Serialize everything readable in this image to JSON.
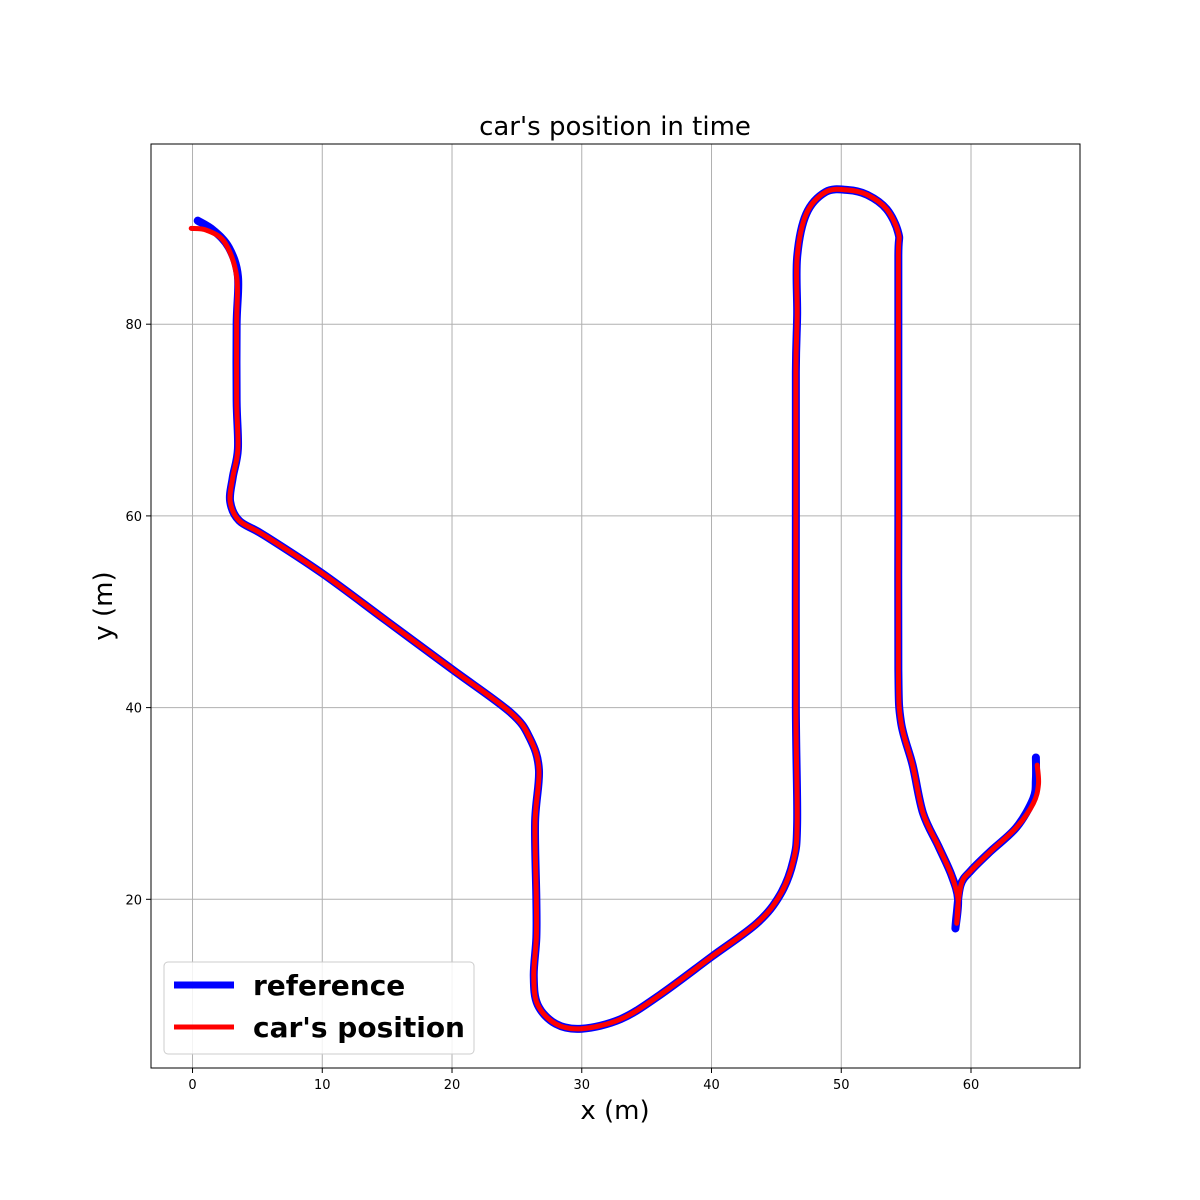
{
  "chart_data": {
    "type": "line",
    "title": "car's position in time",
    "xlabel": "x (m)",
    "ylabel": "y (m)",
    "xlim": [
      -3.2,
      68.4
    ],
    "ylim": [
      2.4,
      98.8
    ],
    "xticks": [
      0,
      10,
      20,
      30,
      40,
      50,
      60
    ],
    "yticks": [
      20,
      40,
      60,
      80
    ],
    "grid": true,
    "legend_position": "lower-left",
    "series": [
      {
        "name": "reference",
        "color": "#0000ff",
        "x": [
          0.4,
          1.6,
          2.8,
          3.5,
          3.4,
          3.4,
          3.5,
          3.1,
          2.9,
          3.6,
          5.5,
          10.0,
          15.0,
          20.0,
          24.5,
          26.0,
          26.7,
          26.4,
          26.5,
          26.5,
          26.3,
          26.6,
          28.0,
          30.0,
          33.0,
          36.0,
          40.0,
          43.5,
          45.3,
          46.3,
          46.6,
          46.5,
          46.5,
          46.5,
          46.6,
          46.6,
          47.3,
          48.8,
          50.5,
          52.0,
          53.5,
          54.4,
          54.4,
          54.4,
          54.4,
          54.4,
          54.6,
          55.5,
          56.3,
          57.5,
          58.5,
          59.0,
          58.8,
          58.9,
          59.2,
          60.0,
          61.5,
          63.5,
          64.8,
          65.0,
          65.0
        ],
        "y": [
          90.8,
          89.8,
          88.0,
          85.0,
          80.0,
          72.0,
          67.0,
          64.0,
          61.5,
          59.5,
          58.0,
          54.0,
          49.0,
          44.0,
          39.5,
          36.8,
          33.5,
          28.0,
          20.0,
          16.0,
          12.0,
          9.0,
          7.0,
          6.5,
          7.5,
          10.0,
          14.0,
          17.5,
          20.5,
          24.0,
          28.0,
          40.0,
          60.0,
          75.0,
          81.0,
          87.0,
          91.5,
          93.8,
          94.0,
          93.5,
          92.0,
          89.5,
          87.0,
          75.0,
          60.0,
          44.0,
          38.5,
          34.0,
          29.0,
          25.5,
          22.5,
          20.0,
          17.0,
          18.5,
          21.5,
          23.0,
          25.0,
          27.5,
          30.5,
          32.5,
          34.8
        ]
      },
      {
        "name": "car's position",
        "color": "#ff0000",
        "x": [
          -0.1,
          1.1,
          2.5,
          3.4,
          3.4,
          3.4,
          3.5,
          3.1,
          2.9,
          3.6,
          5.5,
          10.0,
          15.0,
          20.0,
          24.5,
          26.0,
          26.7,
          26.4,
          26.5,
          26.5,
          26.3,
          26.6,
          28.0,
          30.0,
          33.0,
          36.0,
          40.0,
          43.5,
          45.3,
          46.3,
          46.6,
          46.5,
          46.5,
          46.5,
          46.6,
          46.6,
          47.3,
          48.8,
          50.5,
          52.0,
          53.5,
          54.4,
          54.4,
          54.4,
          54.4,
          54.4,
          54.6,
          55.5,
          56.3,
          57.5,
          58.5,
          59.0,
          58.9,
          59.0,
          59.3,
          60.0,
          61.5,
          63.5,
          64.8,
          65.2,
          65.1
        ],
        "y": [
          90.0,
          89.8,
          88.5,
          85.0,
          80.0,
          72.0,
          67.0,
          64.0,
          61.5,
          59.5,
          58.0,
          54.0,
          49.0,
          44.0,
          39.5,
          36.8,
          33.5,
          28.0,
          20.0,
          16.0,
          12.0,
          9.0,
          7.0,
          6.5,
          7.5,
          10.0,
          14.0,
          17.5,
          20.5,
          24.0,
          28.0,
          40.0,
          60.0,
          75.0,
          81.0,
          87.0,
          91.5,
          93.8,
          94.0,
          93.5,
          92.0,
          89.5,
          87.0,
          75.0,
          60.0,
          44.0,
          38.5,
          34.0,
          29.0,
          25.5,
          22.5,
          20.0,
          17.5,
          19.5,
          21.8,
          23.0,
          25.0,
          27.5,
          30.0,
          32.0,
          34.0
        ]
      }
    ]
  }
}
